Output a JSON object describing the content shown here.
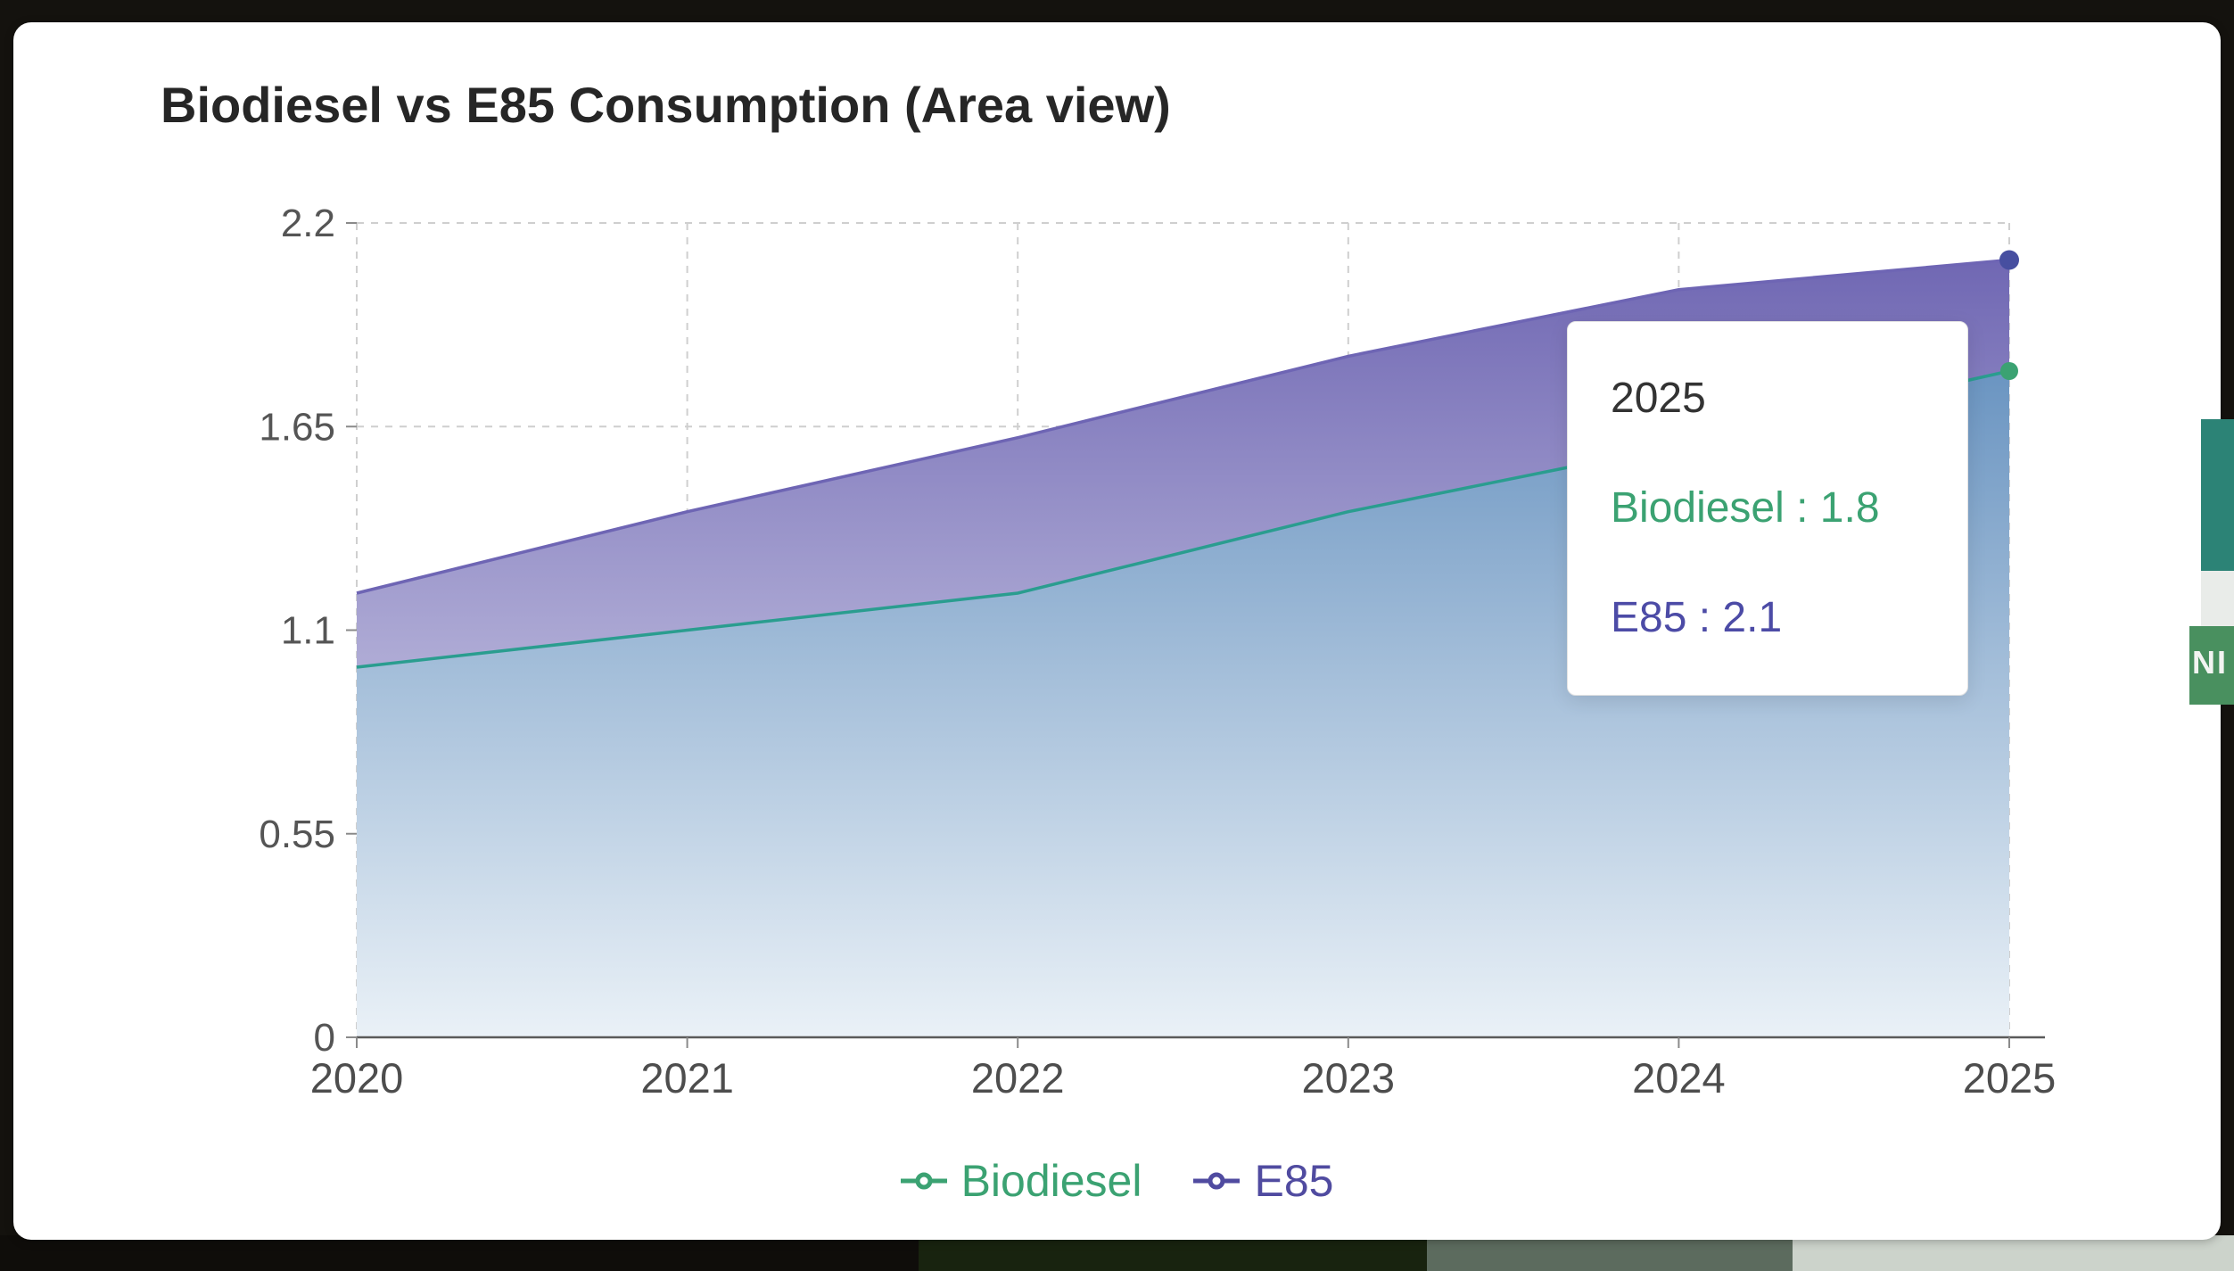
{
  "card": {
    "title": "Biodiesel vs E85 Consumption (Area view)"
  },
  "chart_data": {
    "type": "area",
    "title": "Biodiesel vs E85 Consumption (Area view)",
    "x": [
      2020,
      2021,
      2022,
      2023,
      2024,
      2025
    ],
    "xlabel": "",
    "ylabel": "",
    "ylim": [
      0,
      2.2
    ],
    "y_ticks": [
      0,
      0.55,
      1.1,
      1.65,
      2.2
    ],
    "grid": true,
    "legend_position": "bottom",
    "series": [
      {
        "name": "Biodiesel",
        "values": [
          1.0,
          1.1,
          1.2,
          1.42,
          1.6,
          1.8
        ],
        "line_color": "#2a9d8f",
        "dot_color": "#3ba272",
        "fill_top": "#4e80b5",
        "fill_bottom": "#eaf1f7",
        "text_color": "#3ba272"
      },
      {
        "name": "E85",
        "values": [
          1.2,
          1.42,
          1.62,
          1.84,
          2.02,
          2.1
        ],
        "line_color": "#6e65b4",
        "dot_color": "#474fa0",
        "fill_top": "#6a61b0",
        "fill_bottom": "#e9eaf5",
        "text_color": "#4c4ba6"
      }
    ]
  },
  "tooltip": {
    "year": "2025",
    "lines": [
      {
        "text": "Biodiesel : 1.8",
        "color": "#3ba272"
      },
      {
        "text": "E85 : 2.1",
        "color": "#4c4ba6"
      }
    ]
  },
  "legend": {
    "items": [
      {
        "label": "Biodiesel",
        "color": "#3ba272"
      },
      {
        "label": "E85",
        "color": "#504ba0"
      }
    ]
  },
  "background": {
    "partial_text": "NI",
    "colors": {
      "frame": "#14120e",
      "teal_edge": "#2c8376",
      "white_edge": "#e9ece9",
      "green_edge": "#49905f",
      "bottom_dark": "#0f0d0a",
      "bottom_green": "#18230f",
      "bottom_gray": "#5c6b5e",
      "bottom_light": "#ccd3cb"
    }
  }
}
